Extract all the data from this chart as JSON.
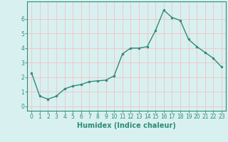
{
  "x": [
    0,
    1,
    2,
    3,
    4,
    5,
    6,
    7,
    8,
    9,
    10,
    11,
    12,
    13,
    14,
    15,
    16,
    17,
    18,
    19,
    20,
    21,
    22,
    23
  ],
  "y": [
    2.3,
    0.7,
    0.5,
    0.7,
    1.2,
    1.4,
    1.5,
    1.7,
    1.75,
    1.8,
    2.1,
    3.6,
    4.0,
    4.0,
    4.1,
    5.2,
    6.6,
    6.1,
    5.9,
    4.6,
    4.1,
    3.7,
    3.3,
    2.7
  ],
  "line_color": "#2e8b78",
  "marker": "o",
  "marker_size": 2.0,
  "bg_color": "#d8f0f0",
  "grid_color": "#f0c8c8",
  "xlabel": "Humidex (Indice chaleur)",
  "xlim": [
    -0.5,
    23.5
  ],
  "ylim": [
    -0.3,
    7.2
  ],
  "yticks": [
    0,
    1,
    2,
    3,
    4,
    5,
    6
  ],
  "xticks": [
    0,
    1,
    2,
    3,
    4,
    5,
    6,
    7,
    8,
    9,
    10,
    11,
    12,
    13,
    14,
    15,
    16,
    17,
    18,
    19,
    20,
    21,
    22,
    23
  ],
  "tick_color": "#2e8b78",
  "label_color": "#2e8b78",
  "xlabel_fontsize": 7,
  "tick_fontsize": 5.5,
  "linewidth": 1.0
}
